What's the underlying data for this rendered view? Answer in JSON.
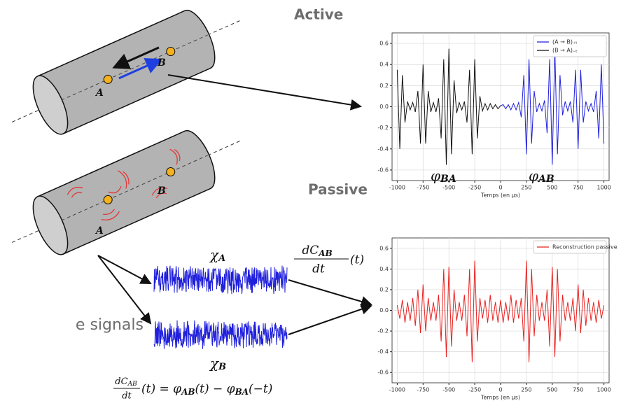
{
  "diagram": {
    "active_label": "Active",
    "passive_label": "Passive",
    "point_a": "A",
    "point_b": "B",
    "point_a_2": "A",
    "point_b_2": "B",
    "side_text": "e signals",
    "chi_a": {
      "symbol": "χ",
      "subscript": "A"
    },
    "chi_b": {
      "symbol": "χ",
      "subscript": "B"
    },
    "derivative": {
      "numerator": "dC",
      "numerator_sub": "AB",
      "denominator": "dt",
      "argument": "(t)"
    },
    "equation": {
      "numerator": "dC",
      "numerator_sub": "AB",
      "denominator": "dt",
      "part1": "(t) = φ",
      "sub1": "AB",
      "part2": "(t) − φ",
      "sub2": "BA",
      "part3": "(−t)"
    }
  },
  "chart_data": [
    {
      "type": "line",
      "xlabel": "Temps (en µs)",
      "x": [
        -1000,
        -975,
        -950,
        -925,
        -900,
        -875,
        -850,
        -825,
        -800,
        -775,
        -750,
        -725,
        -700,
        -675,
        -650,
        -625,
        -600,
        -575,
        -550,
        -525,
        -500,
        -475,
        -450,
        -425,
        -400,
        -375,
        -350,
        -325,
        -300,
        -275,
        -250,
        -225,
        -200,
        -175,
        -150,
        -125,
        -100,
        -75,
        -50,
        -25,
        0,
        25,
        50,
        75,
        100,
        125,
        150,
        175,
        200,
        225,
        250,
        275,
        300,
        325,
        350,
        375,
        400,
        425,
        450,
        475,
        500,
        525,
        550,
        575,
        600,
        625,
        650,
        675,
        700,
        725,
        750,
        775,
        800,
        825,
        850,
        875,
        900,
        925,
        950,
        975,
        1000
      ],
      "series": [
        {
          "name": "(A → B)₊ₜ",
          "color": "#1f1fdc",
          "values": [
            null,
            null,
            null,
            null,
            null,
            null,
            null,
            null,
            null,
            null,
            null,
            null,
            null,
            null,
            null,
            null,
            null,
            null,
            null,
            null,
            null,
            null,
            null,
            null,
            null,
            null,
            null,
            null,
            null,
            null,
            null,
            null,
            null,
            null,
            null,
            null,
            null,
            null,
            null,
            null,
            0.01,
            0.02,
            -0.02,
            0.02,
            -0.03,
            0.03,
            -0.03,
            0.04,
            -0.1,
            0.3,
            -0.45,
            0.45,
            -0.35,
            0.15,
            -0.05,
            0.03,
            -0.04,
            0.06,
            -0.25,
            0.45,
            -0.55,
            0.55,
            -0.45,
            0.3,
            -0.08,
            0.05,
            -0.04,
            0.05,
            -0.15,
            0.35,
            -0.4,
            0.35,
            -0.15,
            0.05,
            -0.04,
            0.03,
            -0.05,
            0.15,
            -0.3,
            0.4,
            -0.35
          ]
        },
        {
          "name": "(B → A)₋ₜ",
          "color": "#111111",
          "values": [
            0.35,
            -0.4,
            0.3,
            -0.15,
            0.05,
            -0.03,
            0.04,
            -0.05,
            0.15,
            -0.35,
            0.4,
            -0.35,
            0.15,
            -0.05,
            0.04,
            -0.05,
            0.08,
            -0.3,
            0.45,
            -0.55,
            0.55,
            -0.45,
            0.25,
            -0.06,
            0.04,
            -0.03,
            0.05,
            -0.15,
            0.35,
            -0.45,
            0.45,
            -0.3,
            0.1,
            -0.04,
            0.03,
            -0.03,
            0.03,
            -0.02,
            0.02,
            -0.02,
            0.01,
            null,
            null,
            null,
            null,
            null,
            null,
            null,
            null,
            null,
            null,
            null,
            null,
            null,
            null,
            null,
            null,
            null,
            null,
            null,
            null,
            null,
            null,
            null,
            null,
            null,
            null,
            null,
            null,
            null,
            null,
            null,
            null,
            null,
            null,
            null,
            null,
            null,
            null,
            null,
            null
          ]
        }
      ],
      "xlim": [
        -1050,
        1050
      ],
      "xticks": [
        -1000,
        -750,
        -500,
        -250,
        0,
        250,
        500,
        750,
        1000
      ],
      "ylim": [
        -0.7,
        0.7
      ],
      "yticks": [
        -0.6,
        -0.4,
        -0.2,
        {
          "value": 0,
          "label": "0.0"
        },
        0.2,
        0.4,
        0.6
      ],
      "grid": true,
      "legend": "upper right",
      "annotations": [
        {
          "symbol": "φ",
          "subscript": "BA"
        },
        {
          "symbol": "φ",
          "subscript": "AB"
        }
      ]
    },
    {
      "type": "line",
      "xlabel": "Temps (en µs)",
      "x": [
        -1000,
        -975,
        -950,
        -925,
        -900,
        -875,
        -850,
        -825,
        -800,
        -775,
        -750,
        -725,
        -700,
        -675,
        -650,
        -625,
        -600,
        -575,
        -550,
        -525,
        -500,
        -475,
        -450,
        -425,
        -400,
        -375,
        -350,
        -325,
        -300,
        -275,
        -250,
        -225,
        -200,
        -175,
        -150,
        -125,
        -100,
        -75,
        -50,
        -25,
        0,
        25,
        50,
        75,
        100,
        125,
        150,
        175,
        200,
        225,
        250,
        275,
        300,
        325,
        350,
        375,
        400,
        425,
        450,
        475,
        500,
        525,
        550,
        575,
        600,
        625,
        650,
        675,
        700,
        725,
        750,
        775,
        800,
        825,
        850,
        875,
        900,
        925,
        950,
        975,
        1000
      ],
      "series": [
        {
          "name": "Reconstruction passive",
          "color": "#e8211f",
          "values": [
            0.05,
            -0.08,
            0.1,
            -0.12,
            0.08,
            -0.1,
            0.12,
            -0.15,
            0.2,
            -0.22,
            0.25,
            -0.2,
            0.12,
            -0.1,
            0.08,
            -0.1,
            0.15,
            -0.3,
            0.4,
            -0.45,
            0.42,
            -0.35,
            0.2,
            -0.1,
            0.08,
            -0.1,
            0.15,
            -0.25,
            0.4,
            -0.5,
            0.48,
            -0.3,
            0.12,
            -0.08,
            0.1,
            -0.12,
            0.15,
            -0.1,
            0.08,
            -0.12,
            0.1,
            -0.12,
            0.08,
            -0.1,
            0.15,
            -0.12,
            0.1,
            -0.08,
            0.12,
            -0.3,
            0.48,
            -0.5,
            0.4,
            -0.25,
            0.15,
            -0.1,
            0.08,
            -0.1,
            0.2,
            -0.35,
            0.42,
            -0.45,
            0.4,
            -0.3,
            0.15,
            -0.1,
            0.08,
            -0.1,
            0.12,
            -0.2,
            0.25,
            -0.22,
            0.2,
            -0.15,
            0.12,
            -0.1,
            0.08,
            -0.12,
            0.1,
            -0.08,
            0.05
          ]
        }
      ],
      "xlim": [
        -1050,
        1050
      ],
      "xticks": [
        -1000,
        -750,
        -500,
        -250,
        0,
        250,
        500,
        750,
        1000
      ],
      "ylim": [
        -0.7,
        0.7
      ],
      "yticks": [
        -0.6,
        -0.4,
        -0.2,
        {
          "value": 0,
          "label": "0.0"
        },
        0.2,
        0.4,
        0.6
      ],
      "grid": true,
      "legend": "upper right"
    }
  ]
}
